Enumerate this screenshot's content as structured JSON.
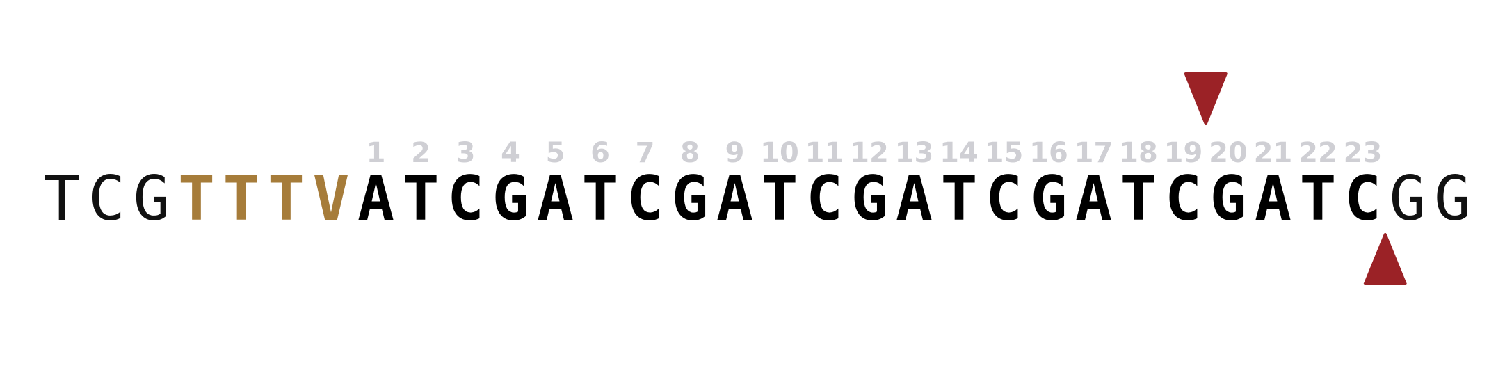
{
  "sequence": {
    "flank_5": "TCG",
    "pam": "TTTV",
    "protospacer": "ATCGATCGATCGATCGATCGATC",
    "flank_3": "GG"
  },
  "positions": [
    "1",
    "2",
    "3",
    "4",
    "5",
    "6",
    "7",
    "8",
    "9",
    "10",
    "11",
    "12",
    "13",
    "14",
    "15",
    "16",
    "17",
    "18",
    "19",
    "20",
    "21",
    "22",
    "23"
  ],
  "cut_sites": [
    {
      "strand": "top",
      "after_position": 19
    },
    {
      "strand": "bottom",
      "after_position": 23
    }
  ],
  "colors": {
    "flank": "#111111",
    "pam": "#a67c3a",
    "protospacer": "#000000",
    "position_numbers": "#cfcfd4",
    "cut_marker": "#9b2226"
  }
}
